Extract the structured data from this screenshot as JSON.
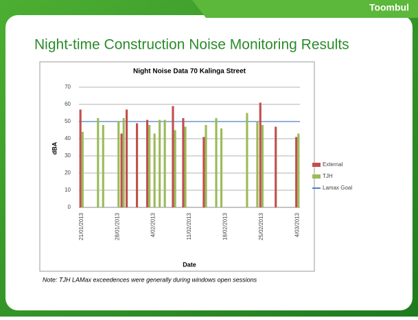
{
  "slide": {
    "tag": "Toombul",
    "title": "Night-time Construction Noise Monitoring Results",
    "note": "Note: TJH LAMax exceedences were  generally during windows open sessions"
  },
  "chart_data": {
    "type": "bar",
    "title": "Night Noise Data 70 Kalinga Street",
    "x_label": "Date",
    "y_label": "dBA",
    "categories": [
      "21/01/2013",
      null,
      null,
      null,
      null,
      null,
      null,
      "28/01/2013",
      null,
      null,
      null,
      null,
      null,
      null,
      "4/02/2013",
      null,
      null,
      null,
      null,
      null,
      null,
      "11/02/2013",
      null,
      null,
      null,
      null,
      null,
      null,
      "18/02/2013",
      null,
      null,
      null,
      null,
      null,
      null,
      "25/02/2013",
      null,
      null,
      null,
      null,
      null,
      null,
      "4/03/2013"
    ],
    "series": [
      {
        "name": "External",
        "color": "#c0504d",
        "values": [
          57,
          null,
          null,
          null,
          null,
          null,
          null,
          null,
          43,
          57,
          null,
          49,
          null,
          51,
          null,
          null,
          null,
          null,
          59,
          null,
          52,
          null,
          null,
          null,
          41,
          null,
          null,
          null,
          null,
          null,
          null,
          null,
          null,
          null,
          null,
          61,
          null,
          null,
          47,
          null,
          null,
          null,
          41
        ]
      },
      {
        "name": "TJH",
        "color": "#9bbb59",
        "values": [
          44,
          null,
          null,
          52,
          48,
          null,
          null,
          50,
          52,
          null,
          null,
          null,
          null,
          48,
          43,
          51,
          51,
          null,
          45,
          null,
          47,
          null,
          null,
          null,
          48,
          null,
          52,
          46,
          null,
          null,
          null,
          null,
          55,
          null,
          50,
          48,
          null,
          null,
          null,
          null,
          null,
          null,
          43
        ]
      }
    ],
    "goal": {
      "name": "Lamax Goal",
      "value": 50,
      "color": "#4f81bd"
    },
    "ylim": [
      0,
      70
    ],
    "yticks": [
      0,
      10,
      20,
      30,
      40,
      50,
      60,
      70
    ],
    "grid": true,
    "legend": "right"
  }
}
